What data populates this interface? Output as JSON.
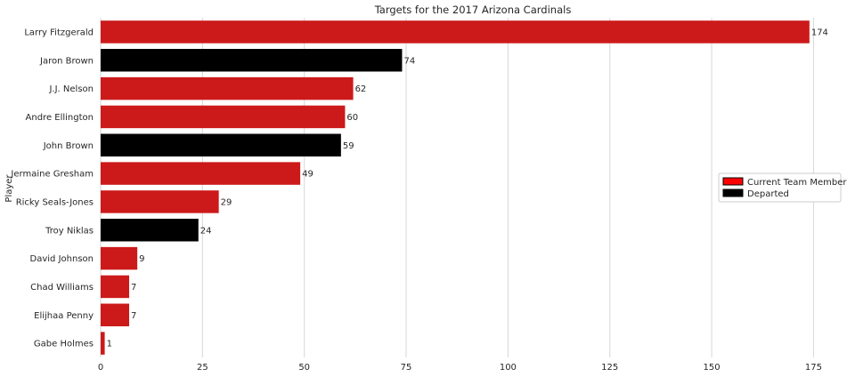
{
  "chart_data": {
    "type": "bar",
    "orientation": "horizontal",
    "title": "Targets for the 2017 Arizona Cardinals",
    "xlabel": "",
    "ylabel": "Player",
    "xlim": [
      0,
      183
    ],
    "xticks": [
      0,
      25,
      50,
      75,
      100,
      125,
      150,
      175
    ],
    "grid": true,
    "legend_position": "center-right",
    "colors": {
      "current": "#cc1a1a",
      "departed": "#000000",
      "current_legend": "#ff0000"
    },
    "legend": [
      {
        "label": "Current Team Member",
        "status": "current"
      },
      {
        "label": "Departed",
        "status": "departed"
      }
    ],
    "categories": [
      "Larry Fitzgerald",
      "Jaron Brown",
      "J.J. Nelson",
      "Andre Ellington",
      "John Brown",
      "Jermaine Gresham",
      "Ricky Seals-Jones",
      "Troy Niklas",
      "David Johnson",
      "Chad Williams",
      "Elijhaa Penny",
      "Gabe Holmes"
    ],
    "values": [
      174,
      74,
      62,
      60,
      59,
      49,
      29,
      24,
      9,
      7,
      7,
      1
    ],
    "status": [
      "current",
      "departed",
      "current",
      "current",
      "departed",
      "current",
      "current",
      "departed",
      "current",
      "current",
      "current",
      "current"
    ]
  }
}
